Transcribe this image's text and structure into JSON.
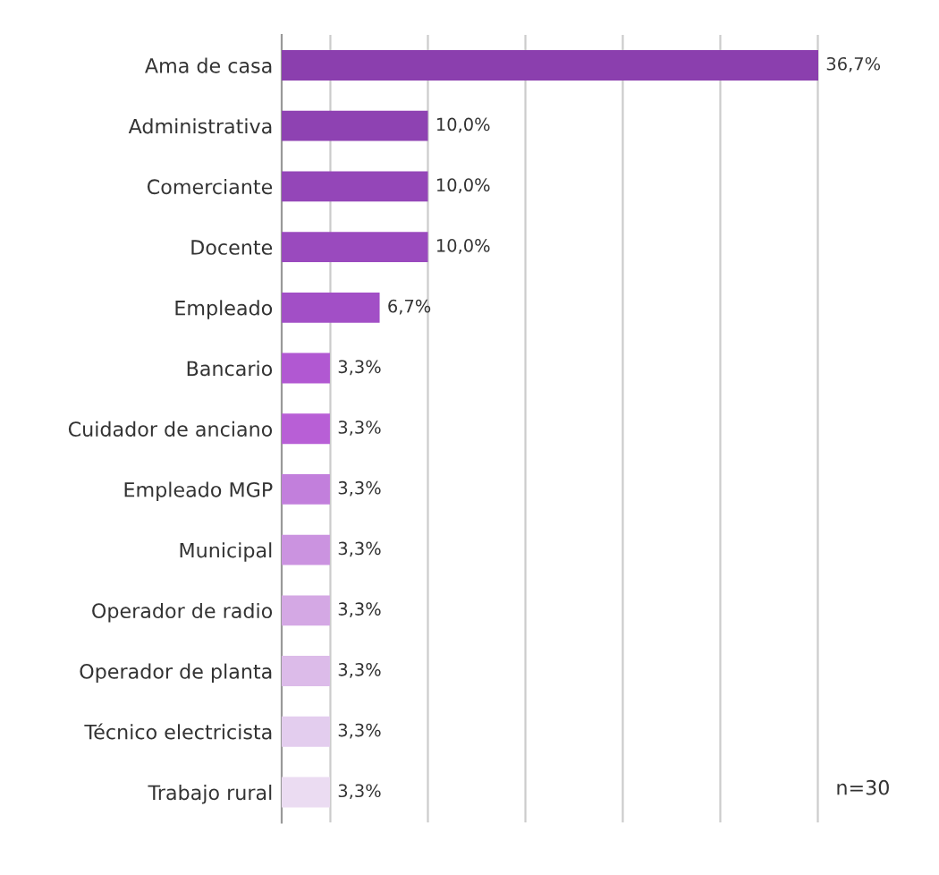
{
  "chart_data": {
    "type": "bar",
    "orientation": "horizontal",
    "categories": [
      "Ama de casa",
      "Administrativa",
      "Comerciante",
      "Docente",
      "Empleado",
      "Bancario",
      "Cuidador de anciano",
      "Empleado MGP",
      "Municipal",
      "Operador de radio",
      "Operador de planta",
      "Técnico electricista",
      "Trabajo rural"
    ],
    "values": [
      36.7,
      10.0,
      10.0,
      10.0,
      6.7,
      3.3,
      3.3,
      3.3,
      3.3,
      3.3,
      3.3,
      3.3,
      3.3
    ],
    "value_labels": [
      "36,7%",
      "10,0%",
      "10,0%",
      "10,0%",
      "6,7%",
      "3,3%",
      "3,3%",
      "3,3%",
      "3,3%",
      "3,3%",
      "3,3%",
      "3,3%",
      "3,3%"
    ],
    "colors": [
      "#8b3fae",
      "#8e42b2",
      "#9446b8",
      "#9a4abe",
      "#a24fc6",
      "#b158d2",
      "#b85fd6",
      "#c27fdc",
      "#cb93e0",
      "#d4a8e4",
      "#dcbbe9",
      "#e3cdee",
      "#ebdcf2"
    ],
    "xticks": [
      {
        "value": 3.33,
        "label": null
      },
      {
        "value": 10,
        "label": null
      },
      {
        "value": 16.67,
        "label": null
      },
      {
        "value": 23.33,
        "label": null
      },
      {
        "value": 30,
        "label": null
      },
      {
        "value": 36.67,
        "label": null
      }
    ],
    "tick_labels": "y",
    "grid": "x",
    "annotations": [
      "n=30"
    ]
  }
}
